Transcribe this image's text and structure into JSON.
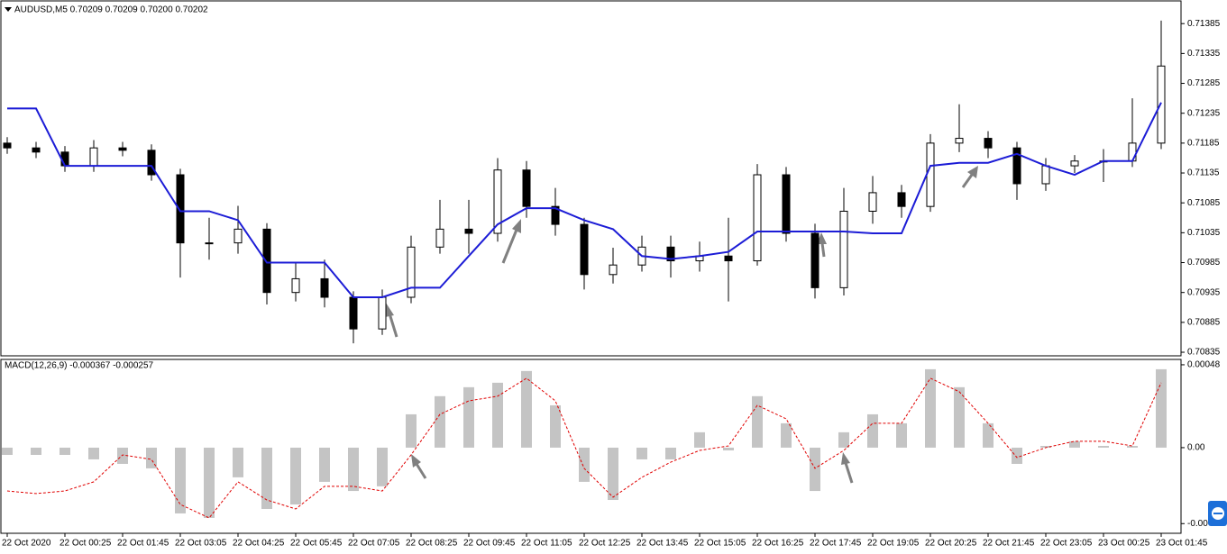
{
  "chart_data": [
    {
      "type": "candlestick",
      "title": "AUDUSD,M5 0.70209 0.70209 0.70200 0.70202",
      "categories": [
        "22 Oct 2020",
        null,
        "22 Oct 00:25",
        null,
        "22 Oct 01:45",
        null,
        "22 Oct 03:05",
        null,
        "22 Oct 04:25",
        null,
        "22 Oct 05:45",
        null,
        "22 Oct 07:05",
        null,
        "22 Oct 08:25",
        null,
        "22 Oct 09:45",
        null,
        "22 Oct 11:05",
        null,
        "22 Oct 12:25",
        null,
        "22 Oct 13:45",
        null,
        "22 Oct 15:05",
        null,
        "22 Oct 16:25",
        null,
        "22 Oct 17:45",
        null,
        "22 Oct 19:05",
        null,
        "22 Oct 20:25",
        null,
        "22 Oct 21:45",
        null,
        "22 Oct 23:05",
        null,
        "23 Oct 00:25",
        null,
        "23 Oct 01:45"
      ],
      "open": [
        0.71185,
        0.71177,
        0.7117,
        0.71147,
        0.71177,
        0.71173,
        0.71132,
        0.71018,
        0.71018,
        0.71041,
        0.70935,
        0.70958,
        0.70927,
        0.70874,
        0.70927,
        0.71011,
        0.71041,
        0.71034,
        0.7114,
        0.71079,
        0.71049,
        0.70965,
        0.70981,
        0.71011,
        0.70988,
        0.70996,
        0.70988,
        0.71132,
        0.71034,
        0.70943,
        0.71071,
        0.71102,
        0.71079,
        0.71185,
        0.71193,
        0.71177,
        0.71117,
        0.71147,
        0.71155,
        0.71155,
        0.71185
      ],
      "high": [
        0.71195,
        0.71187,
        0.7118,
        0.7119,
        0.71187,
        0.71183,
        0.71142,
        0.7106,
        0.7108,
        0.71051,
        0.70985,
        0.7099,
        0.70937,
        0.7094,
        0.7103,
        0.7109,
        0.7109,
        0.7116,
        0.71155,
        0.7111,
        0.7106,
        0.7101,
        0.7103,
        0.7103,
        0.7102,
        0.7106,
        0.7115,
        0.71145,
        0.7105,
        0.7111,
        0.7113,
        0.71115,
        0.712,
        0.7125,
        0.71205,
        0.71187,
        0.7116,
        0.71165,
        0.71175,
        0.7126,
        0.7139
      ],
      "low": [
        0.71167,
        0.7116,
        0.71137,
        0.71137,
        0.71163,
        0.71122,
        0.7096,
        0.7099,
        0.71,
        0.70915,
        0.7092,
        0.7091,
        0.7085,
        0.70864,
        0.70917,
        0.71,
        0.71,
        0.7102,
        0.7106,
        0.7103,
        0.7094,
        0.7095,
        0.7097,
        0.7096,
        0.7097,
        0.7092,
        0.7098,
        0.7102,
        0.70925,
        0.7093,
        0.7105,
        0.7106,
        0.7107,
        0.7117,
        0.7116,
        0.7109,
        0.71105,
        0.71135,
        0.7112,
        0.71145,
        0.71175
      ],
      "close": [
        0.71177,
        0.7117,
        0.71147,
        0.71177,
        0.71173,
        0.71132,
        0.71018,
        0.71018,
        0.71041,
        0.70935,
        0.70958,
        0.70927,
        0.70874,
        0.70927,
        0.71011,
        0.71041,
        0.71034,
        0.7114,
        0.71079,
        0.71049,
        0.70965,
        0.70981,
        0.71011,
        0.70988,
        0.70996,
        0.70988,
        0.71132,
        0.71034,
        0.70943,
        0.71071,
        0.71102,
        0.71079,
        0.71185,
        0.71193,
        0.71177,
        0.71117,
        0.71147,
        0.71155,
        0.71155,
        0.71185,
        0.71314
      ],
      "up_color": "#ffffff",
      "down_color": "#000000",
      "line": {
        "color": "#1c1cd6",
        "values": [
          0.71243,
          0.71243,
          0.71147,
          0.71147,
          0.71147,
          0.71147,
          0.71071,
          0.71071,
          0.71056,
          0.70985,
          0.70985,
          0.70985,
          0.70927,
          0.70927,
          0.70943,
          0.70943,
          0.70996,
          0.71049,
          0.71076,
          0.71076,
          0.71056,
          0.71041,
          0.70996,
          0.70991,
          0.70996,
          0.71003,
          0.71037,
          0.71037,
          0.71037,
          0.71037,
          0.71034,
          0.71034,
          0.71147,
          0.71152,
          0.71152,
          0.71167,
          0.71147,
          0.71132,
          0.71155,
          0.71155,
          0.71253
        ]
      },
      "ylim": [
        0.70829,
        0.71423
      ],
      "yticks": [
        0.71385,
        0.71335,
        0.71285,
        0.71235,
        0.71185,
        0.71135,
        0.71085,
        0.71035,
        0.70985,
        0.70935,
        0.70885,
        0.70835
      ]
    },
    {
      "type": "macd",
      "title": "MACD(12,26,9) -0.000367 -0.000257",
      "histogram": {
        "color": "#c4c4c4",
        "values": [
          -4.2e-05,
          -4.2e-05,
          -4.2e-05,
          -6.8e-05,
          -9.4e-05,
          -0.00012,
          -0.000381,
          -0.000407,
          -0.000172,
          -0.000355,
          -0.000329,
          -0.000198,
          -0.000251,
          -0.000224,
          0.000193,
          0.000298,
          0.00035,
          0.000376,
          0.000444,
          0.000245,
          -0.000198,
          -0.000303,
          -6.8e-05,
          -6.8e-05,
          8.9e-05,
          -1.6e-05,
          0.000298,
          0.000141,
          -0.000251,
          8.9e-05,
          0.000193,
          0.000141,
          0.000454,
          0.00035,
          0.000141,
          -9.4e-05,
          1e-05,
          3.7e-05,
          1e-05,
          1e-05,
          0.000454
        ]
      },
      "signal": {
        "color": "#e00000",
        "values": [
          -0.000251,
          -0.000266,
          -0.000251,
          -0.000198,
          -4.2e-05,
          -6.8e-05,
          -0.000329,
          -0.000407,
          -0.000198,
          -0.000303,
          -0.000355,
          -0.000224,
          -0.000224,
          -0.000251,
          -4.2e-05,
          0.000193,
          0.000271,
          0.000298,
          0.000402,
          0.000271,
          -0.00012,
          -0.000287,
          -0.000172,
          -8.4e-05,
          -1.6e-05,
          1e-05,
          0.000245,
          0.000167,
          -0.00012,
          -1.6e-05,
          0.000141,
          0.000141,
          0.000402,
          0.000324,
          0.000141,
          -5.7e-05,
          0,
          3.7e-05,
          3.7e-05,
          1e-05,
          0.000376
        ]
      },
      "ylim": [
        -0.000496,
        0.000511
      ],
      "yticks": [
        0.00048,
        {
          "value": 0,
          "label": "0.00"
        },
        {
          "value": -0.00044,
          "label": "-0.00"
        }
      ]
    }
  ]
}
